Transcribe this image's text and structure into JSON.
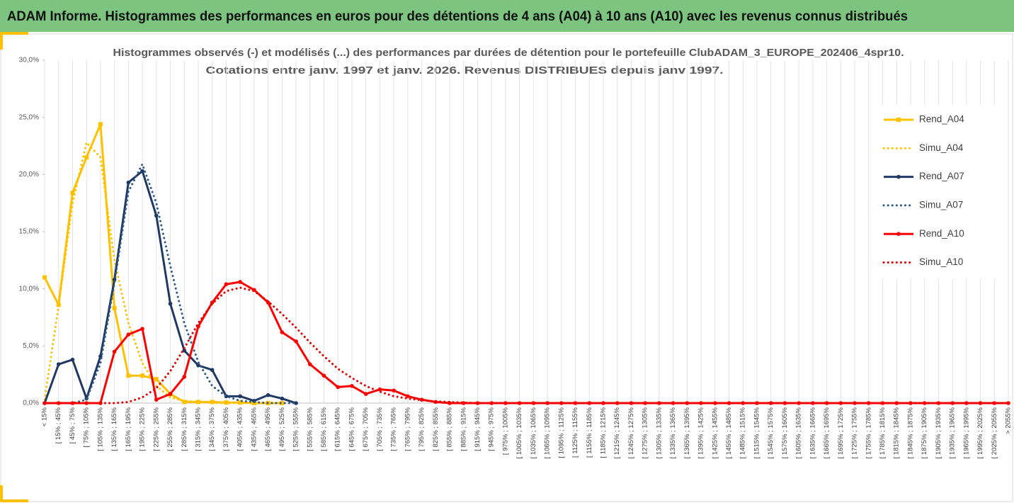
{
  "header": {
    "title": "ADAM Informe. Histogrammes des performances en euros pour des détentions de 4 ans (A04) à 10 ans (A10) avec les revenus connus distribués"
  },
  "chart_data": {
    "type": "line",
    "title": [
      "Histogrammes observés (-) et modélisés (...) des performances par durées de détention pour le portefeuille ClubADAM_3_EUROPE_202406_4spr10.",
      "Cotations entre janv. 1997 et janv. 2026. Revenus DISTRIBUES depuis janv 1997."
    ],
    "categories": [
      "< 15%",
      "[ 15% ; 45%",
      "[ 45% ; 75%",
      "[ 75% ; 105%",
      "[ 105% ; 135%",
      "[ 135% ; 165%",
      "[ 165% ; 195%",
      "[ 195% ; 225%",
      "[ 225% ; 255%",
      "[ 255% ; 285%",
      "[ 285% ; 315%",
      "[ 315% ; 345%",
      "[ 345% ; 375%",
      "[ 375% ; 405%",
      "[ 405% ; 435%",
      "[ 435% ; 465%",
      "[ 465% ; 495%",
      "[ 495% ; 525%",
      "[ 525% ; 555%",
      "[ 555% ; 585%",
      "[ 585% ; 615%",
      "[ 615% ; 645%",
      "[ 645% ; 675%",
      "[ 675% ; 705%",
      "[ 705% ; 735%",
      "[ 735% ; 765%",
      "[ 765% ; 795%",
      "[ 795% ; 825%",
      "[ 825% ; 855%",
      "[ 855% ; 885%",
      "[ 885% ; 915%",
      "[ 915% ; 945%",
      "[ 945% ; 975%",
      "[ 975% ; 1005%",
      "[ 1005% ; 1035%",
      "[ 1035% ; 1065%",
      "[ 1065% ; 1095%",
      "[ 1095% ; 1125%",
      "[ 1125% ; 1155%",
      "[ 1155% ; 1185%",
      "[ 1185% ; 1215%",
      "[ 1215% ; 1245%",
      "[ 1245% ; 1275%",
      "[ 1275% ; 1305%",
      "[ 1305% ; 1335%",
      "[ 1335% ; 1365%",
      "[ 1365% ; 1395%",
      "[ 1395% ; 1425%",
      "[ 1425% ; 1455%",
      "[ 1455% ; 1485%",
      "[ 1485% ; 1515%",
      "[ 1515% ; 1545%",
      "[ 1545% ; 1575%",
      "[ 1575% ; 1605%",
      "[ 1605% ; 1635%",
      "[ 1635% ; 1665%",
      "[ 1665% ; 1695%",
      "[ 1695% ; 1725%",
      "[ 1725% ; 1755%",
      "[ 1755% ; 1785%",
      "[ 1785% ; 1815%",
      "[ 1815% ; 1845%",
      "[ 1845% ; 1875%",
      "[ 1875% ; 1905%",
      "[ 1905% ; 1935%",
      "[ 1935% ; 1965%",
      "[ 1965% ; 1995%",
      "[ 1995% ; 2025%",
      "[ 2025% ; 2055%",
      "> 2055%"
    ],
    "series": [
      {
        "name": "Rend_A04",
        "color": "#ffc000",
        "line_style": "solid",
        "marker": "square",
        "values": [
          11.0,
          8.6,
          18.4,
          21.5,
          24.4,
          8.3,
          2.4,
          2.4,
          2.1,
          0.8,
          0.1,
          0.1,
          0.1,
          0.05,
          0.05,
          0,
          0,
          0,
          null,
          null,
          null,
          null,
          null,
          null,
          null,
          null,
          null,
          null,
          null,
          null,
          null,
          null,
          null,
          null,
          null,
          null,
          null,
          null,
          null,
          null,
          null,
          null,
          null,
          null,
          null,
          null,
          null,
          null,
          null,
          null,
          null,
          null,
          null,
          null,
          null,
          null,
          null,
          null,
          null,
          null,
          null,
          null,
          null,
          null,
          null,
          null,
          null,
          null,
          null,
          null
        ]
      },
      {
        "name": "Simu_A04",
        "color": "#ffc000",
        "line_style": "dotted",
        "marker": "none",
        "values": [
          0.3,
          8.5,
          17.5,
          22.8,
          21.5,
          12.5,
          7,
          3.5,
          1.5,
          0.5,
          0.2,
          0.1,
          0,
          0,
          0,
          0,
          0,
          0,
          null,
          null,
          null,
          null,
          null,
          null,
          null,
          null,
          null,
          null,
          null,
          null,
          null,
          null,
          null,
          null,
          null,
          null,
          null,
          null,
          null,
          null,
          null,
          null,
          null,
          null,
          null,
          null,
          null,
          null,
          null,
          null,
          null,
          null,
          null,
          null,
          null,
          null,
          null,
          null,
          null,
          null,
          null,
          null,
          null,
          null,
          null,
          null,
          null,
          null,
          null,
          null
        ]
      },
      {
        "name": "Rend_A07",
        "color": "#1f3864",
        "line_style": "solid",
        "marker": "circle",
        "values": [
          0,
          3.4,
          3.8,
          0.4,
          4.1,
          10.8,
          19.3,
          20.3,
          16.4,
          8.7,
          4.6,
          3.3,
          2.9,
          0.6,
          0.6,
          0.2,
          0.7,
          0.4,
          0,
          null,
          null,
          null,
          null,
          null,
          null,
          null,
          null,
          null,
          null,
          null,
          null,
          null,
          null,
          null,
          null,
          null,
          null,
          null,
          null,
          null,
          null,
          null,
          null,
          null,
          null,
          null,
          null,
          null,
          null,
          null,
          null,
          null,
          null,
          null,
          null,
          null,
          null,
          null,
          null,
          null,
          null,
          null,
          null,
          null,
          null,
          null,
          null,
          null,
          null,
          null
        ]
      },
      {
        "name": "Simu_A07",
        "color": "#2e5a88",
        "line_style": "dotted",
        "marker": "none",
        "values": [
          0,
          0,
          0,
          0.3,
          3.5,
          10.5,
          18.5,
          20.9,
          17.5,
          12,
          7,
          3.6,
          1.5,
          0.6,
          0.2,
          0.1,
          0,
          0,
          0,
          null,
          null,
          null,
          null,
          null,
          null,
          null,
          null,
          null,
          null,
          null,
          null,
          null,
          null,
          null,
          null,
          null,
          null,
          null,
          null,
          null,
          null,
          null,
          null,
          null,
          null,
          null,
          null,
          null,
          null,
          null,
          null,
          null,
          null,
          null,
          null,
          null,
          null,
          null,
          null,
          null,
          null,
          null,
          null,
          null,
          null,
          null,
          null,
          null,
          null,
          null
        ]
      },
      {
        "name": "Rend_A10",
        "color": "#ff0000",
        "line_style": "solid",
        "marker": "circle",
        "values": [
          0,
          0,
          0,
          0,
          0,
          4.5,
          6.0,
          6.5,
          0.3,
          0.8,
          2.3,
          6.7,
          8.8,
          10.4,
          10.6,
          9.9,
          8.8,
          6.2,
          5.4,
          3.4,
          2.4,
          1.4,
          1.5,
          0.8,
          1.2,
          1.1,
          0.6,
          0.3,
          0.1,
          0,
          0,
          0,
          0,
          0,
          0,
          0,
          0,
          0,
          0,
          0,
          0,
          0,
          0,
          0,
          0,
          0,
          0,
          0,
          0,
          0,
          0,
          0,
          0,
          0,
          0,
          0,
          0,
          0,
          0,
          0,
          0,
          0,
          0,
          0,
          0,
          0,
          0,
          0,
          0,
          0
        ]
      },
      {
        "name": "Simu_A10",
        "color": "#e00000",
        "line_style": "dotted",
        "marker": "none",
        "values": [
          0,
          0,
          0,
          0,
          0,
          0,
          0.1,
          0.5,
          1.3,
          2.8,
          4.8,
          7,
          8.7,
          9.8,
          10.1,
          9.8,
          8.9,
          7.8,
          6.6,
          5.3,
          4.1,
          3.0,
          2.2,
          1.5,
          1.0,
          0.6,
          0.4,
          0.25,
          0.15,
          0.1,
          0.05,
          0,
          0,
          0,
          0,
          0,
          0,
          0,
          0,
          0,
          0,
          0,
          0,
          0,
          0,
          0,
          0,
          0,
          0,
          0,
          0,
          0,
          0,
          0,
          0,
          0,
          0,
          0,
          0,
          0,
          0,
          0,
          0,
          0,
          0,
          0,
          0,
          0,
          0,
          0
        ]
      }
    ],
    "ylim": [
      0,
      30
    ],
    "yticks": [
      {
        "value": 0,
        "label": "0,0%"
      },
      {
        "value": 5,
        "label": "5,0%"
      },
      {
        "value": 10,
        "label": "10,0%"
      },
      {
        "value": 15,
        "label": "15,0%"
      },
      {
        "value": 20,
        "label": "20,0%"
      },
      {
        "value": 25,
        "label": "25,0%"
      },
      {
        "value": 30,
        "label": "30,0%"
      }
    ],
    "grid": "x",
    "legend": "right"
  }
}
